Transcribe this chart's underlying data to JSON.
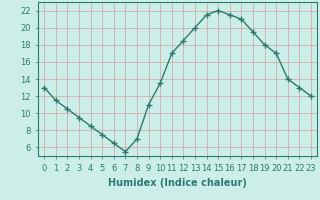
{
  "x": [
    0,
    1,
    2,
    3,
    4,
    5,
    6,
    7,
    8,
    9,
    10,
    11,
    12,
    13,
    14,
    15,
    16,
    17,
    18,
    19,
    20,
    21,
    22,
    23
  ],
  "y": [
    13,
    11.5,
    10.5,
    9.5,
    8.5,
    7.5,
    6.5,
    5.5,
    7.0,
    11.0,
    13.5,
    17.0,
    18.5,
    20.0,
    21.5,
    22.0,
    21.5,
    21.0,
    19.5,
    18.0,
    17.0,
    14.0,
    13.0,
    12.0
  ],
  "line_color": "#2d7a6e",
  "marker": "+",
  "marker_size": 4,
  "background_color": "#cceee8",
  "grid_color": "#d4a0a0",
  "xlabel": "Humidex (Indice chaleur)",
  "xlim": [
    -0.5,
    23.5
  ],
  "ylim": [
    5,
    23
  ],
  "yticks": [
    6,
    8,
    10,
    12,
    14,
    16,
    18,
    20,
    22
  ],
  "xtick_labels": [
    "0",
    "1",
    "2",
    "3",
    "4",
    "5",
    "6",
    "7",
    "8",
    "9",
    "10",
    "11",
    "12",
    "13",
    "14",
    "15",
    "16",
    "17",
    "18",
    "19",
    "20",
    "21",
    "22",
    "23"
  ],
  "xlabel_fontsize": 7,
  "tick_fontsize": 6,
  "line_width": 1.0
}
